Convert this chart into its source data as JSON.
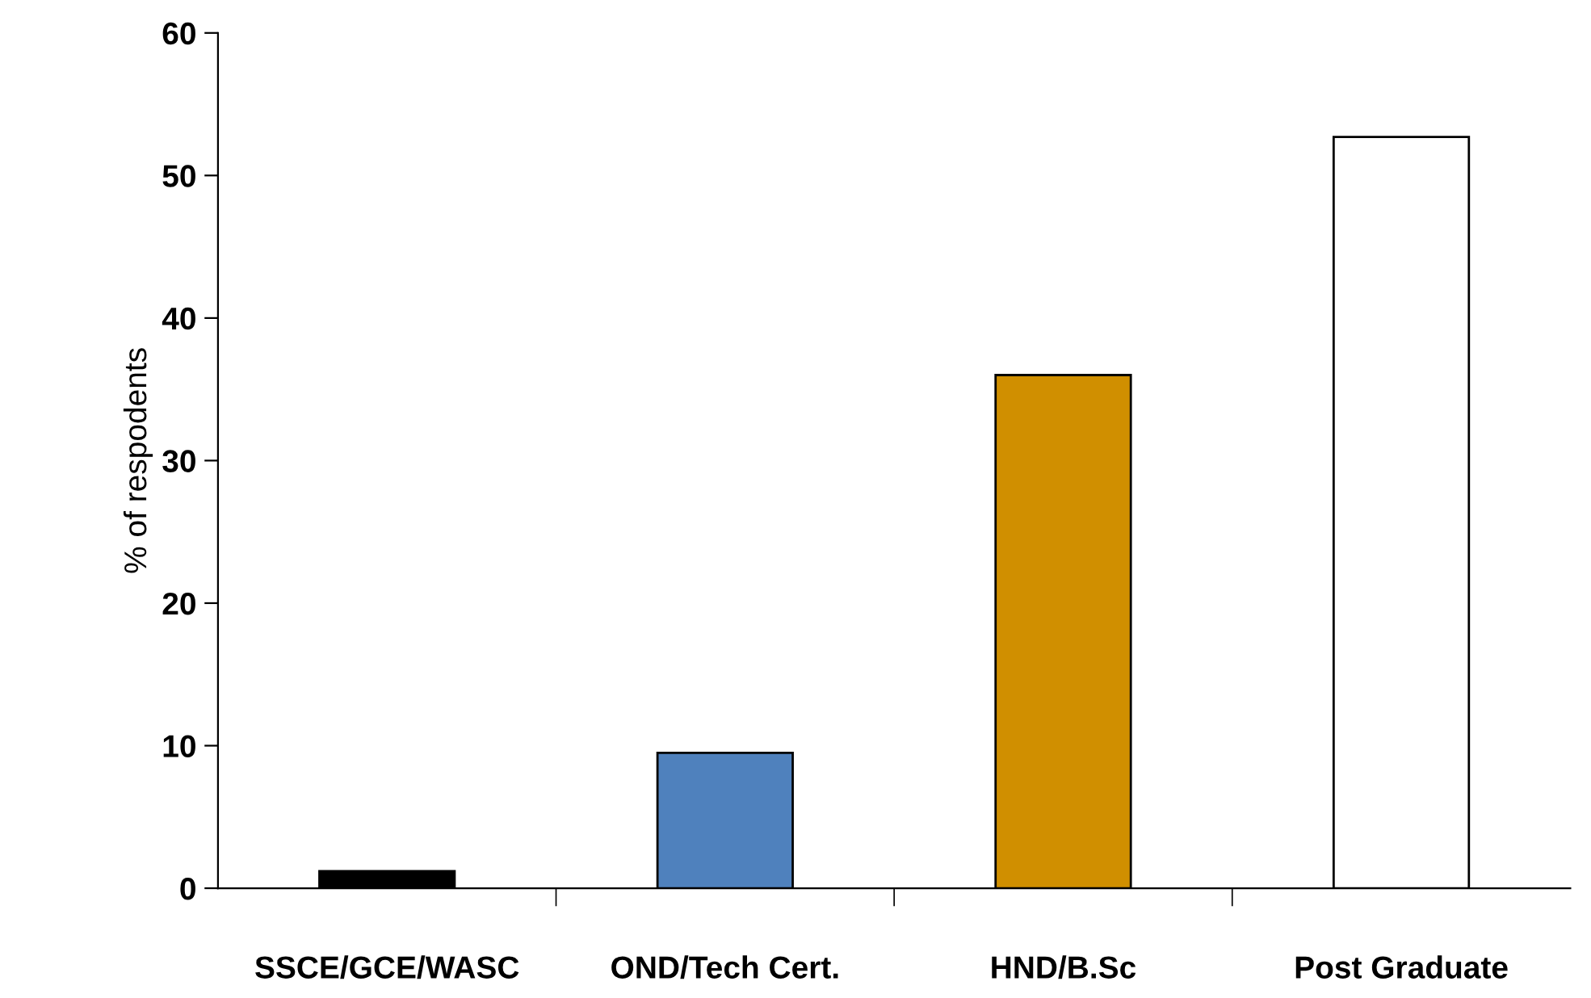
{
  "chart_data": {
    "type": "bar",
    "ylabel": "% of respodents",
    "categories": [
      "SSCE/GCE/WASC",
      "OND/Tech Cert.",
      "HND/B.Sc",
      "Post Graduate"
    ],
    "values": [
      1.2,
      9.5,
      36.0,
      52.7
    ],
    "colors": [
      "#000000",
      "#4f81bd",
      "#d08f00",
      "#ffffff"
    ],
    "ylim": [
      0,
      60
    ],
    "yticks": [
      0,
      10,
      20,
      30,
      40,
      50,
      60
    ],
    "grid": false,
    "legend": false
  }
}
